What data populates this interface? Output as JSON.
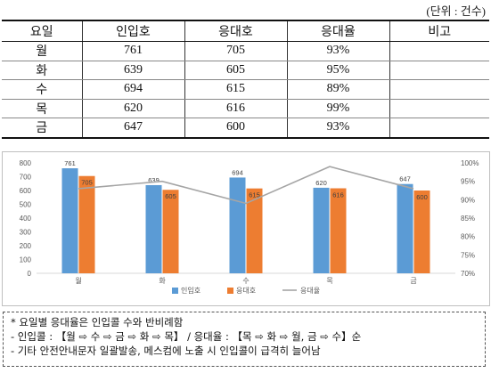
{
  "unit_label": "(단위 : 건수)",
  "table": {
    "headers": [
      "요일",
      "인입호",
      "응대호",
      "응대율",
      "비고"
    ],
    "rows": [
      [
        "월",
        "761",
        "705",
        "93%",
        ""
      ],
      [
        "화",
        "639",
        "605",
        "95%",
        ""
      ],
      [
        "수",
        "694",
        "615",
        "89%",
        ""
      ],
      [
        "목",
        "620",
        "616",
        "99%",
        ""
      ],
      [
        "금",
        "647",
        "600",
        "93%",
        ""
      ]
    ]
  },
  "chart_data": {
    "type": "bar",
    "categories": [
      "월",
      "화",
      "수",
      "목",
      "금"
    ],
    "series": [
      {
        "name": "인입호",
        "type": "bar",
        "axis": "left",
        "values": [
          761,
          639,
          694,
          620,
          647
        ],
        "color": "#5B9BD5"
      },
      {
        "name": "응대호",
        "type": "bar",
        "axis": "left",
        "values": [
          705,
          605,
          615,
          616,
          600
        ],
        "color": "#ED7D31"
      },
      {
        "name": "응대율",
        "type": "line",
        "axis": "right",
        "values": [
          93,
          95,
          89,
          99,
          93
        ],
        "color": "#A5A5A5"
      }
    ],
    "ylim": [
      0,
      800
    ],
    "yticks": [
      "0",
      "100",
      "200",
      "300",
      "400",
      "500",
      "600",
      "700",
      "800"
    ],
    "y2lim": [
      70,
      100
    ],
    "y2ticks": [
      "70%",
      "75%",
      "80%",
      "85%",
      "90%",
      "95%",
      "100%"
    ],
    "legend_position": "bottom",
    "grid": false,
    "title": "",
    "xlabel": "",
    "ylabel": ""
  },
  "notes": [
    "* 요일별 응대율은 인입콜 수와 반비례함",
    " - 인입콜 : 【월 ⇨ 수 ⇨ 금 ⇨ 화 ⇨ 목】 / 응대율 : 【목 ⇨ 화 ⇨ 월, 금 ⇨ 수】순",
    " - 기타 안전안내문자 일괄발송, 메스컴에 노출 시 인입콜이 급격히 늘어남"
  ]
}
